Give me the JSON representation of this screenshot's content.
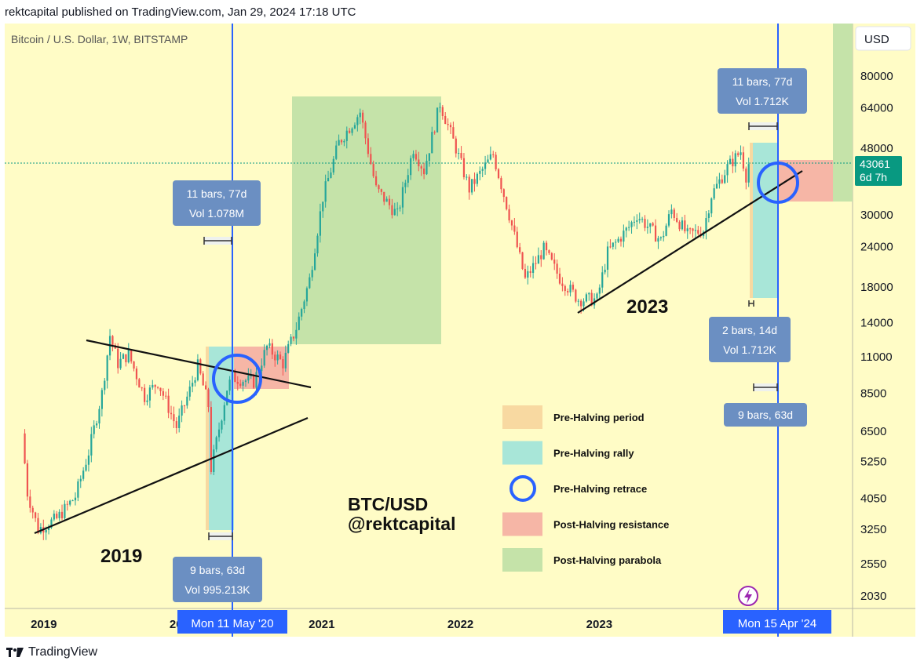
{
  "header": {
    "published": "rektcapital published on TradingView.com, Jan 29, 2024 17:18 UTC"
  },
  "symbol": "Bitcoin / U.S. Dollar, 1W, BITSTAMP",
  "currency_button": "USD",
  "footer": {
    "brand": "TradingView"
  },
  "colors": {
    "background": "#fffcc6",
    "up": "#26a69a",
    "down": "#ef5350",
    "vline": "#2962ff",
    "pre_halving_period": "#f8d9a1",
    "pre_halving_rally": "#a8e6d8",
    "post_halving_resistance": "#f6b6a6",
    "post_halving_parabola": "#c5e3a9",
    "info_box": "#6b8fc2",
    "last_price": "#089981"
  },
  "chart_data": {
    "type": "candlestick",
    "title": "Bitcoin / U.S. Dollar, 1W, BITSTAMP",
    "xlabel": "",
    "ylabel": "",
    "scale": "log",
    "x_ticks": [
      "2019",
      "2020",
      "2021",
      "2022",
      "2023",
      "2024"
    ],
    "y_ticks": [
      80000,
      64000,
      48000,
      30000,
      24000,
      18000,
      14000,
      11000,
      8500,
      6500,
      5250,
      4050,
      3250,
      2550,
      2030
    ],
    "last_price": {
      "value": "43061",
      "countdown": "6d 7h"
    },
    "price_path": [
      [
        "2018-11-05",
        6400
      ],
      [
        "2018-11-19",
        4200
      ],
      [
        "2018-12-17",
        3250
      ],
      [
        "2019-02-04",
        3500
      ],
      [
        "2019-03-25",
        4100
      ],
      [
        "2019-04-29",
        5600
      ],
      [
        "2019-06-03",
        8500
      ],
      [
        "2019-06-24",
        12800
      ],
      [
        "2019-07-15",
        10500
      ],
      [
        "2019-08-12",
        11200
      ],
      [
        "2019-09-23",
        8300
      ],
      [
        "2019-10-28",
        9200
      ],
      [
        "2019-12-16",
        6700
      ],
      [
        "2020-01-20",
        8700
      ],
      [
        "2020-02-10",
        10300
      ],
      [
        "2020-03-09",
        7800
      ],
      [
        "2020-03-16",
        5000
      ],
      [
        "2020-04-27",
        8800
      ],
      [
        "2020-05-11",
        9500
      ],
      [
        "2020-07-06",
        9200
      ],
      [
        "2020-08-10",
        11800
      ],
      [
        "2020-09-21",
        10500
      ],
      [
        "2020-10-26",
        13500
      ],
      [
        "2020-11-30",
        19000
      ],
      [
        "2021-01-04",
        34000
      ],
      [
        "2021-02-15",
        50000
      ],
      [
        "2021-04-12",
        62000
      ],
      [
        "2021-05-24",
        36000
      ],
      [
        "2021-07-19",
        30000
      ],
      [
        "2021-08-30",
        48000
      ],
      [
        "2021-09-27",
        41000
      ],
      [
        "2021-11-08",
        66000
      ],
      [
        "2021-12-20",
        48000
      ],
      [
        "2022-01-24",
        36000
      ],
      [
        "2022-03-28",
        46000
      ],
      [
        "2022-05-09",
        30000
      ],
      [
        "2022-06-20",
        19000
      ],
      [
        "2022-08-08",
        23500
      ],
      [
        "2022-09-19",
        19200
      ],
      [
        "2022-11-07",
        16500
      ],
      [
        "2022-12-26",
        16500
      ],
      [
        "2023-01-23",
        23000
      ],
      [
        "2023-03-20",
        27500
      ],
      [
        "2023-04-10",
        30000
      ],
      [
        "2023-06-12",
        25000
      ],
      [
        "2023-07-10",
        31000
      ],
      [
        "2023-08-21",
        26000
      ],
      [
        "2023-10-02",
        27000
      ],
      [
        "2023-10-23",
        34500
      ],
      [
        "2023-12-04",
        42000
      ],
      [
        "2024-01-08",
        47000
      ],
      [
        "2024-01-22",
        39500
      ],
      [
        "2024-01-29",
        43061
      ]
    ],
    "halvings": [
      {
        "date": "2020-05-11",
        "label": "Mon 11 May '20"
      },
      {
        "date": "2024-04-15",
        "label": "Mon 15 Apr '24"
      }
    ],
    "annotations": [
      {
        "line1": "11 bars, 77d",
        "line2": "Vol 1.078M"
      },
      {
        "line1": "9 bars, 63d",
        "line2": "Vol 995.213K"
      },
      {
        "line1": "11 bars, 77d",
        "line2": "Vol 1.712K"
      },
      {
        "line1": "2 bars, 14d",
        "line2": "Vol 1.712K"
      },
      {
        "line1": "9 bars, 63d",
        "line2": ""
      }
    ],
    "text_labels": {
      "y2019": "2019",
      "y2023": "2023",
      "watermark1": "BTC/USD",
      "watermark2": "@rektcapital"
    },
    "legend": [
      {
        "label": "Pre-Halving period",
        "kind": "swatch",
        "color": "#f8d9a1"
      },
      {
        "label": "Pre-Halving rally",
        "kind": "swatch",
        "color": "#a8e6d8"
      },
      {
        "label": "Pre-Halving retrace",
        "kind": "circle",
        "color": "#2962ff"
      },
      {
        "label": "Post-Halving resistance",
        "kind": "swatch",
        "color": "#f6b6a6"
      },
      {
        "label": "Post-Halving parabola",
        "kind": "swatch",
        "color": "#c5e3a9"
      }
    ],
    "legend_position": "bottom-right"
  }
}
